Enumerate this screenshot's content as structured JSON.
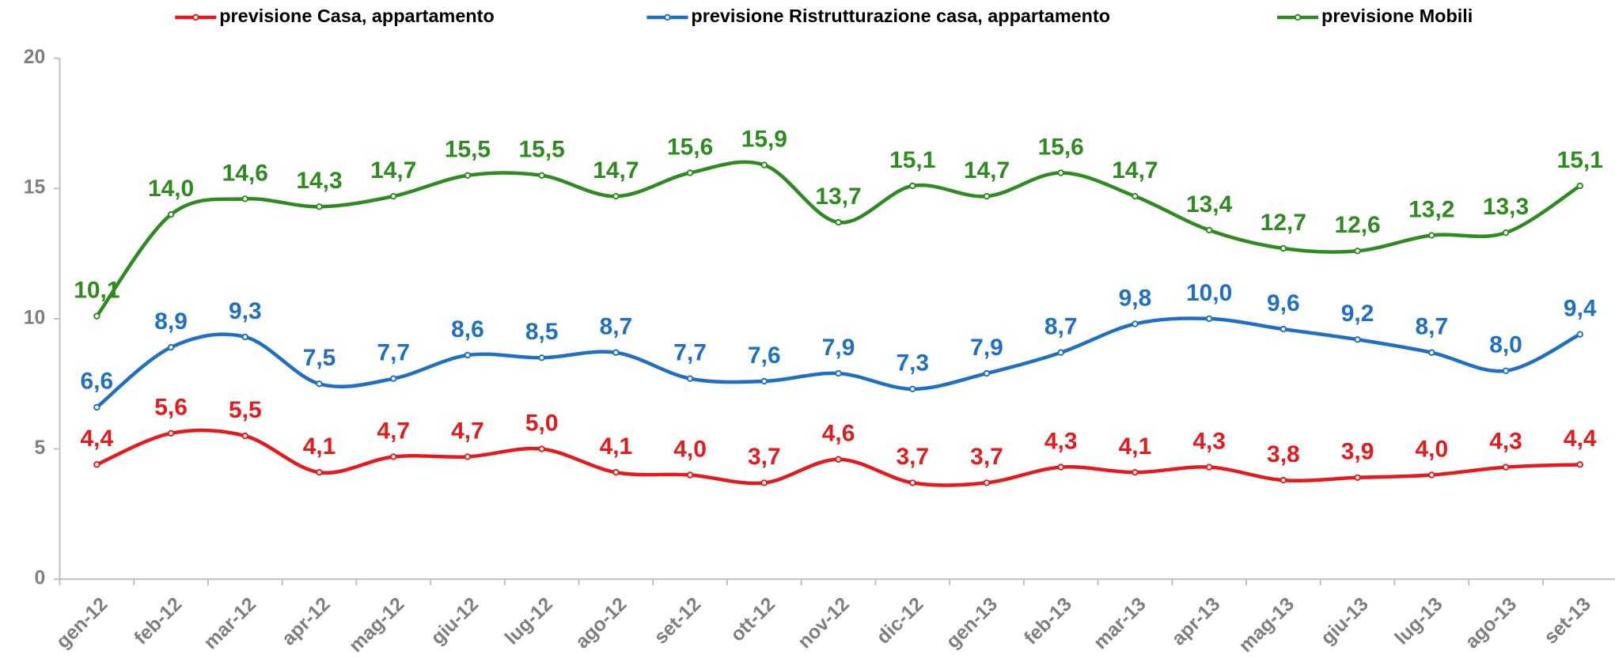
{
  "chart_data": {
    "type": "line",
    "categories": [
      "gen-12",
      "feb-12",
      "mar-12",
      "apr-12",
      "mag-12",
      "giu-12",
      "lug-12",
      "ago-12",
      "set-12",
      "ott-12",
      "nov-12",
      "dic-12",
      "gen-13",
      "feb-13",
      "mar-13",
      "apr-13",
      "mag-13",
      "giu-13",
      "lug-13",
      "ago-13",
      "set-13"
    ],
    "ylim": [
      0,
      20
    ],
    "yticks": [
      0,
      5,
      10,
      15,
      20
    ],
    "series": [
      {
        "name": "previsione Casa, appartamento",
        "color": "#e41a1c",
        "values": [
          4.4,
          5.6,
          5.5,
          4.1,
          4.7,
          4.7,
          5.0,
          4.1,
          4.0,
          3.7,
          4.6,
          3.7,
          3.7,
          4.3,
          4.1,
          4.3,
          3.8,
          3.9,
          4.0,
          4.3,
          4.4
        ],
        "value_labels": [
          "4,4",
          "5,6",
          "5,5",
          "4,1",
          "4,7",
          "4,7",
          "5,0",
          "4,1",
          "4,0",
          "3,7",
          "4,6",
          "3,7",
          "3,7",
          "4,3",
          "4,1",
          "4,3",
          "3,8",
          "3,9",
          "4,0",
          "4,3",
          "4,4"
        ]
      },
      {
        "name": "previsione Ristrutturazione casa, appartamento",
        "color": "#1f6fc5",
        "values": [
          6.6,
          8.9,
          9.3,
          7.5,
          7.7,
          8.6,
          8.5,
          8.7,
          7.7,
          7.6,
          7.9,
          7.3,
          7.9,
          8.7,
          9.8,
          10.0,
          9.6,
          9.2,
          8.7,
          8.0,
          9.4
        ],
        "value_labels": [
          "6,6",
          "8,9",
          "9,3",
          "7,5",
          "7,7",
          "8,6",
          "8,5",
          "8,7",
          "7,7",
          "7,6",
          "7,9",
          "7,3",
          "7,9",
          "8,7",
          "9,8",
          "10,0",
          "9,6",
          "9,2",
          "8,7",
          "8,0",
          "9,4"
        ]
      },
      {
        "name": "previsione Mobili",
        "color": "#2e8b1f",
        "values": [
          10.1,
          14.0,
          14.6,
          14.3,
          14.7,
          15.5,
          15.5,
          14.7,
          15.6,
          15.9,
          13.7,
          15.1,
          14.7,
          15.6,
          14.7,
          13.4,
          12.7,
          12.6,
          13.2,
          13.3,
          15.1
        ],
        "value_labels": [
          "10,1",
          "14,0",
          "14,6",
          "14,3",
          "14,7",
          "15,5",
          "15,5",
          "14,7",
          "15,6",
          "15,9",
          "13,7",
          "15,1",
          "14,7",
          "15,6",
          "14,7",
          "13,4",
          "12,7",
          "12,6",
          "13,2",
          "13,3",
          "15,1"
        ]
      }
    ]
  }
}
